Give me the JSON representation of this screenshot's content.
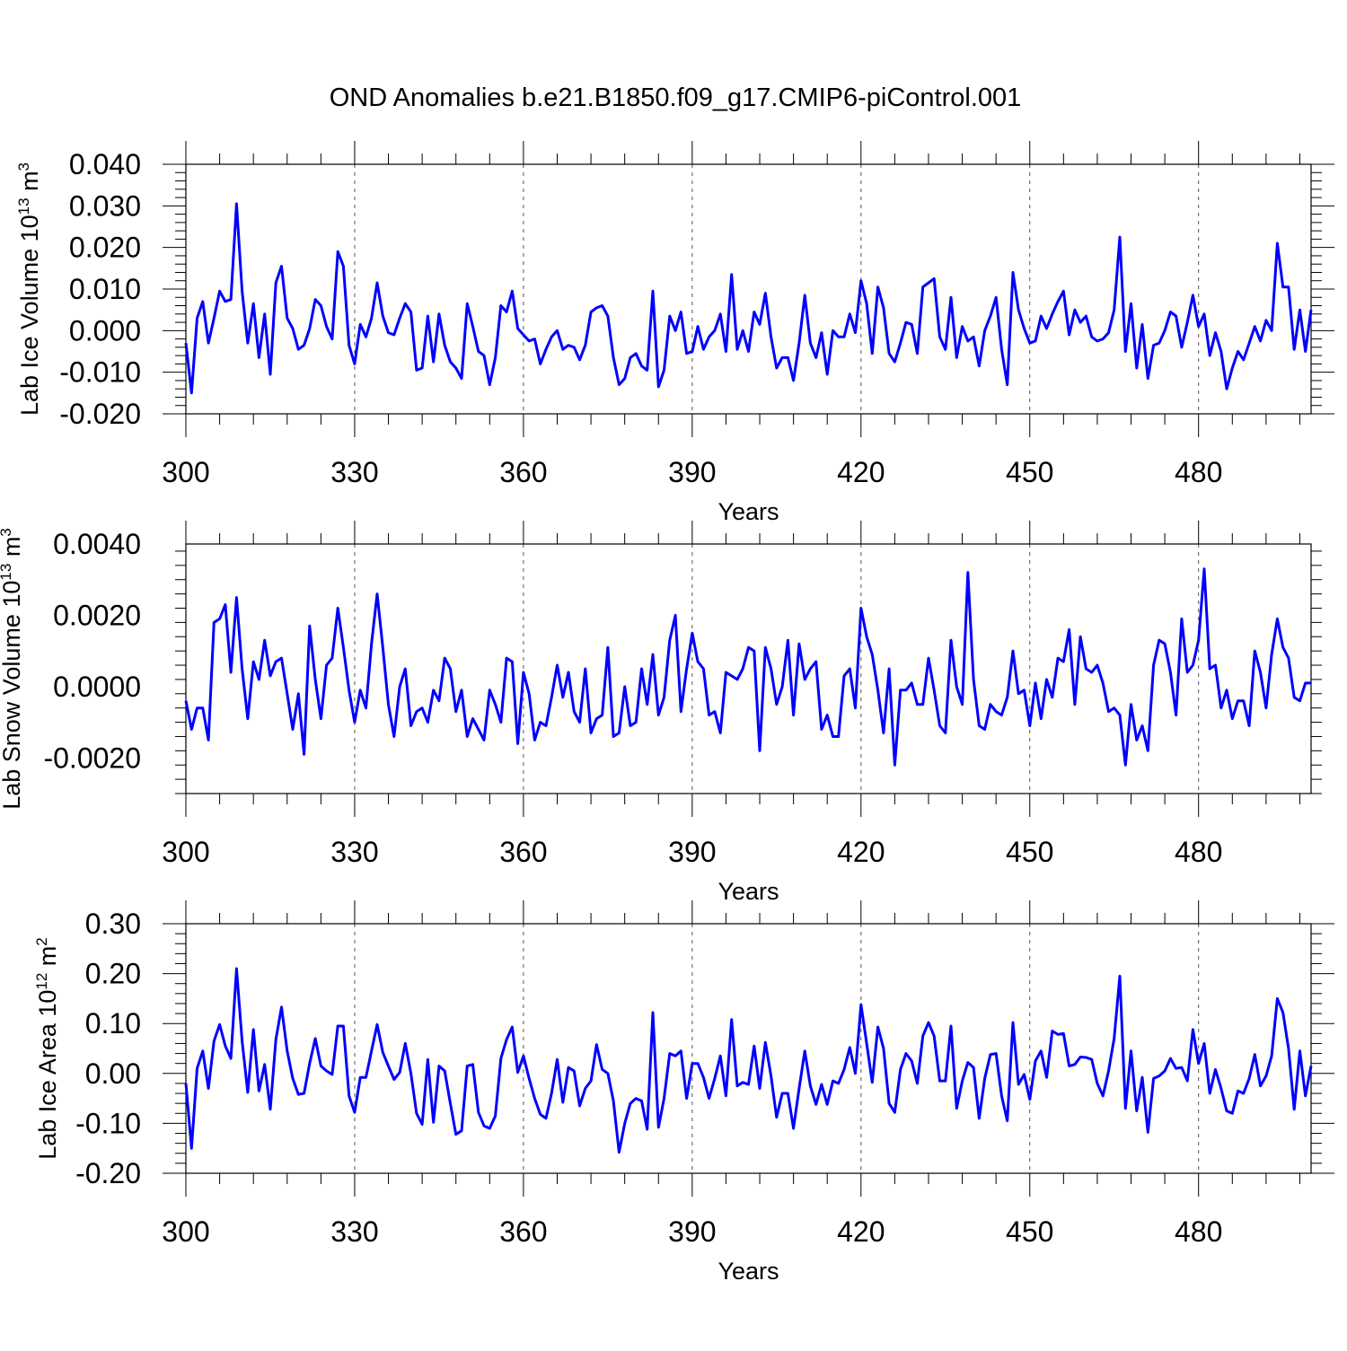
{
  "figure": {
    "title": "OND Anomalies b.e21.B1850.f09_g17.CMIP6-piControl.001",
    "line_color": "#0000ff"
  },
  "chart_data": [
    {
      "type": "line",
      "xlabel": "Years",
      "ylabel": {
        "prefix": "Lab Ice Volume 10",
        "exponent": "13",
        "unit": " m",
        "unit_exponent": "3"
      },
      "xlim": [
        300,
        500
      ],
      "ylim": [
        -0.02,
        0.04
      ],
      "xticks": [
        300,
        330,
        360,
        390,
        420,
        450,
        480
      ],
      "yticks": [
        -0.02,
        -0.01,
        0.0,
        0.01,
        0.02,
        0.03,
        0.04
      ],
      "ytick_labels": [
        "-0.020",
        "-0.010",
        "0.000",
        "0.010",
        "0.020",
        "0.030",
        "0.040"
      ],
      "grid": "vertical dashed at major x ticks",
      "x_start": 300,
      "values": [
        -0.003,
        -0.015,
        0.003,
        0.007,
        -0.003,
        0.003,
        0.0095,
        0.007,
        0.0075,
        0.0305,
        0.0095,
        -0.003,
        0.0065,
        -0.0065,
        0.004,
        -0.0105,
        0.0115,
        0.0155,
        0.003,
        0.0005,
        -0.0045,
        -0.0035,
        0.0005,
        0.0075,
        0.006,
        0.001,
        -0.002,
        0.019,
        0.0155,
        -0.0035,
        -0.008,
        0.0015,
        -0.0015,
        0.003,
        0.0115,
        0.0035,
        -0.0005,
        -0.001,
        0.003,
        0.0065,
        0.0045,
        -0.0095,
        -0.009,
        0.0035,
        -0.0075,
        0.004,
        -0.0035,
        -0.0075,
        -0.009,
        -0.0115,
        0.0065,
        0.001,
        -0.005,
        -0.006,
        -0.013,
        -0.0065,
        0.006,
        0.0045,
        0.0095,
        0.0005,
        -0.001,
        -0.0025,
        -0.002,
        -0.008,
        -0.0045,
        -0.0015,
        0.0,
        -0.0045,
        -0.0035,
        -0.004,
        -0.007,
        -0.0035,
        0.0045,
        0.0055,
        0.006,
        0.0035,
        -0.0065,
        -0.013,
        -0.0115,
        -0.0065,
        -0.0055,
        -0.0085,
        -0.0095,
        0.0095,
        -0.0135,
        -0.0095,
        0.0035,
        0.0,
        0.0045,
        -0.0055,
        -0.005,
        0.001,
        -0.0045,
        -0.0015,
        0.0,
        0.004,
        -0.005,
        0.0135,
        -0.0045,
        0.0,
        -0.005,
        0.0045,
        0.0015,
        0.009,
        -0.0015,
        -0.009,
        -0.0065,
        -0.0065,
        -0.012,
        -0.003,
        0.0085,
        -0.003,
        -0.0065,
        -0.0005,
        -0.0105,
        0.0,
        -0.0015,
        -0.0015,
        0.004,
        -0.0005,
        0.012,
        0.0065,
        -0.0055,
        0.0105,
        0.0055,
        -0.0055,
        -0.0075,
        -0.003,
        0.002,
        0.0015,
        -0.0055,
        0.0105,
        0.0115,
        0.0125,
        -0.0015,
        -0.0045,
        0.008,
        -0.0065,
        0.001,
        -0.0025,
        -0.0015,
        -0.0085,
        0.0,
        0.0035,
        0.008,
        -0.0045,
        -0.013,
        0.014,
        0.005,
        0.0005,
        -0.003,
        -0.0025,
        0.0035,
        0.0005,
        0.004,
        0.007,
        0.0095,
        -0.001,
        0.005,
        0.002,
        0.0035,
        -0.0015,
        -0.0025,
        -0.002,
        -0.0005,
        0.005,
        0.0225,
        -0.005,
        0.0065,
        -0.009,
        0.0015,
        -0.0115,
        -0.0035,
        -0.003,
        0.0,
        0.0045,
        0.0035,
        -0.004,
        0.002,
        0.0085,
        0.001,
        0.004,
        -0.006,
        -0.0005,
        -0.005,
        -0.014,
        -0.009,
        -0.005,
        -0.007,
        -0.003,
        0.001,
        -0.0025,
        0.0025,
        0.0,
        0.021,
        0.0105,
        0.0105,
        -0.0045,
        0.005,
        -0.005,
        0.005
      ]
    },
    {
      "type": "line",
      "xlabel": "Years",
      "ylabel": {
        "prefix": "Lab Snow Volume 10",
        "exponent": "13",
        "unit": " m",
        "unit_exponent": "3"
      },
      "xlim": [
        300,
        500
      ],
      "ylim": [
        -0.003,
        0.004
      ],
      "xticks": [
        300,
        330,
        360,
        390,
        420,
        450,
        480
      ],
      "yticks": [
        -0.002,
        0.0,
        0.002,
        0.004
      ],
      "ytick_labels": [
        "-0.0020",
        "0.0000",
        "0.0020",
        "0.0040"
      ],
      "grid": "vertical dashed at major x ticks",
      "x_start": 300,
      "values": [
        -0.0004,
        -0.0012,
        -0.0006,
        -0.0006,
        -0.0015,
        0.0018,
        0.0019,
        0.0023,
        0.0004,
        0.0025,
        0.0005,
        -0.0009,
        0.0007,
        0.0002,
        0.0013,
        0.0003,
        0.0007,
        0.0008,
        -0.0002,
        -0.0012,
        -0.0002,
        -0.0019,
        0.0017,
        0.0002,
        -0.0009,
        0.0006,
        0.0008,
        0.0022,
        0.0011,
        -0.0001,
        -0.001,
        -0.0001,
        -0.0006,
        0.0012,
        0.0026,
        0.0011,
        -0.0005,
        -0.0014,
        0.0,
        0.0005,
        -0.0011,
        -0.0007,
        -0.0006,
        -0.001,
        -0.0001,
        -0.0004,
        0.0008,
        0.0005,
        -0.0007,
        -0.0001,
        -0.0014,
        -0.0009,
        -0.0012,
        -0.0015,
        -0.0001,
        -0.0005,
        -0.001,
        0.0008,
        0.0007,
        -0.0016,
        0.0004,
        -0.0002,
        -0.0015,
        -0.001,
        -0.0011,
        -0.0003,
        0.0006,
        -0.0003,
        0.0004,
        -0.0007,
        -0.001,
        0.0005,
        -0.0013,
        -0.0009,
        -0.0008,
        0.0011,
        -0.0014,
        -0.0013,
        0.0,
        -0.0011,
        -0.001,
        0.0005,
        -0.0005,
        0.0009,
        -0.0008,
        -0.0003,
        0.0013,
        0.002,
        -0.0007,
        0.0005,
        0.0015,
        0.0007,
        0.0005,
        -0.0008,
        -0.0007,
        -0.0013,
        0.0004,
        0.0003,
        0.0002,
        0.0005,
        0.0011,
        0.001,
        -0.0018,
        0.0011,
        0.0005,
        -0.0005,
        0.0,
        0.0013,
        -0.0008,
        0.0012,
        0.0002,
        0.0005,
        0.0007,
        -0.0012,
        -0.0008,
        -0.0014,
        -0.0014,
        0.0003,
        0.0005,
        -0.0006,
        0.0022,
        0.0014,
        0.0009,
        -0.0001,
        -0.0013,
        0.0005,
        -0.0022,
        -0.0001,
        -0.0001,
        0.0001,
        -0.0005,
        -0.0005,
        0.0008,
        -0.0001,
        -0.0011,
        -0.0013,
        0.0013,
        0.0,
        -0.0005,
        0.0032,
        0.0002,
        -0.0011,
        -0.0012,
        -0.0005,
        -0.0007,
        -0.0008,
        -0.0003,
        0.001,
        -0.0002,
        -0.0001,
        -0.0011,
        0.0001,
        -0.0009,
        0.0002,
        -0.0003,
        0.0008,
        0.0007,
        0.0016,
        -0.0005,
        0.0014,
        0.0005,
        0.0004,
        0.0006,
        0.0001,
        -0.0007,
        -0.0006,
        -0.0008,
        -0.0022,
        -0.0005,
        -0.0015,
        -0.0011,
        -0.0018,
        0.0006,
        0.0013,
        0.0012,
        0.0004,
        -0.0008,
        0.0019,
        0.0004,
        0.0006,
        0.0013,
        0.0033,
        0.0005,
        0.0006,
        -0.0006,
        -0.0001,
        -0.0009,
        -0.0004,
        -0.0004,
        -0.0011,
        0.001,
        0.0004,
        -0.0006,
        0.0009,
        0.0019,
        0.0011,
        0.0008,
        -0.0003,
        -0.0004,
        0.0001,
        0.0001
      ]
    },
    {
      "type": "line",
      "xlabel": "Years",
      "ylabel": {
        "prefix": "Lab Ice Area 10",
        "exponent": "12",
        "unit": " m",
        "unit_exponent": "2"
      },
      "xlim": [
        300,
        500
      ],
      "ylim": [
        -0.2,
        0.3
      ],
      "xticks": [
        300,
        330,
        360,
        390,
        420,
        450,
        480
      ],
      "yticks": [
        -0.2,
        -0.1,
        0.0,
        0.1,
        0.2,
        0.3
      ],
      "ytick_labels": [
        "-0.20",
        "-0.10",
        "0.00",
        "0.10",
        "0.20",
        "0.30"
      ],
      "grid": "vertical dashed at major x ticks",
      "x_start": 300,
      "values": [
        -0.02,
        -0.15,
        0.01,
        0.045,
        -0.03,
        0.065,
        0.098,
        0.055,
        0.03,
        0.21,
        0.065,
        -0.038,
        0.088,
        -0.035,
        0.018,
        -0.072,
        0.068,
        0.133,
        0.045,
        -0.01,
        -0.042,
        -0.04,
        0.02,
        0.07,
        0.015,
        0.005,
        -0.002,
        0.095,
        0.095,
        -0.045,
        -0.078,
        -0.008,
        -0.008,
        0.045,
        0.098,
        0.042,
        0.015,
        -0.012,
        0.002,
        0.06,
        0.0,
        -0.08,
        -0.102,
        0.028,
        -0.098,
        0.015,
        0.005,
        -0.06,
        -0.122,
        -0.115,
        0.015,
        0.018,
        -0.078,
        -0.105,
        -0.11,
        -0.085,
        0.03,
        0.068,
        0.093,
        0.002,
        0.035,
        -0.01,
        -0.05,
        -0.082,
        -0.09,
        -0.04,
        0.028,
        -0.058,
        0.012,
        0.005,
        -0.065,
        -0.03,
        -0.015,
        0.058,
        0.008,
        0.0,
        -0.055,
        -0.158,
        -0.1,
        -0.06,
        -0.05,
        -0.055,
        -0.112,
        0.122,
        -0.108,
        -0.05,
        0.04,
        0.035,
        0.045,
        -0.05,
        0.02,
        0.02,
        -0.008,
        -0.05,
        -0.01,
        0.035,
        -0.045,
        0.108,
        -0.025,
        -0.018,
        -0.022,
        0.055,
        -0.03,
        0.062,
        -0.005,
        -0.088,
        -0.04,
        -0.04,
        -0.11,
        -0.03,
        0.045,
        -0.025,
        -0.062,
        -0.022,
        -0.062,
        -0.015,
        -0.02,
        0.008,
        0.052,
        0.0,
        0.138,
        0.06,
        -0.018,
        0.093,
        0.05,
        -0.06,
        -0.078,
        0.008,
        0.04,
        0.025,
        -0.02,
        0.075,
        0.102,
        0.075,
        -0.015,
        -0.015,
        0.095,
        -0.07,
        -0.015,
        0.022,
        0.012,
        -0.09,
        -0.01,
        0.038,
        0.04,
        -0.045,
        -0.095,
        0.102,
        -0.022,
        -0.002,
        -0.052,
        0.025,
        0.045,
        -0.008,
        0.085,
        0.078,
        0.08,
        0.015,
        0.018,
        0.033,
        0.032,
        0.028,
        -0.02,
        -0.045,
        0.005,
        0.07,
        0.195,
        -0.07,
        0.045,
        -0.075,
        -0.008,
        -0.118,
        -0.01,
        -0.005,
        0.005,
        0.03,
        0.01,
        0.012,
        -0.015,
        0.088,
        0.02,
        0.06,
        -0.04,
        0.008,
        -0.03,
        -0.075,
        -0.08,
        -0.035,
        -0.04,
        -0.01,
        0.038,
        -0.025,
        -0.005,
        0.035,
        0.15,
        0.122,
        0.05,
        -0.072,
        0.045,
        -0.045,
        0.015
      ]
    }
  ]
}
